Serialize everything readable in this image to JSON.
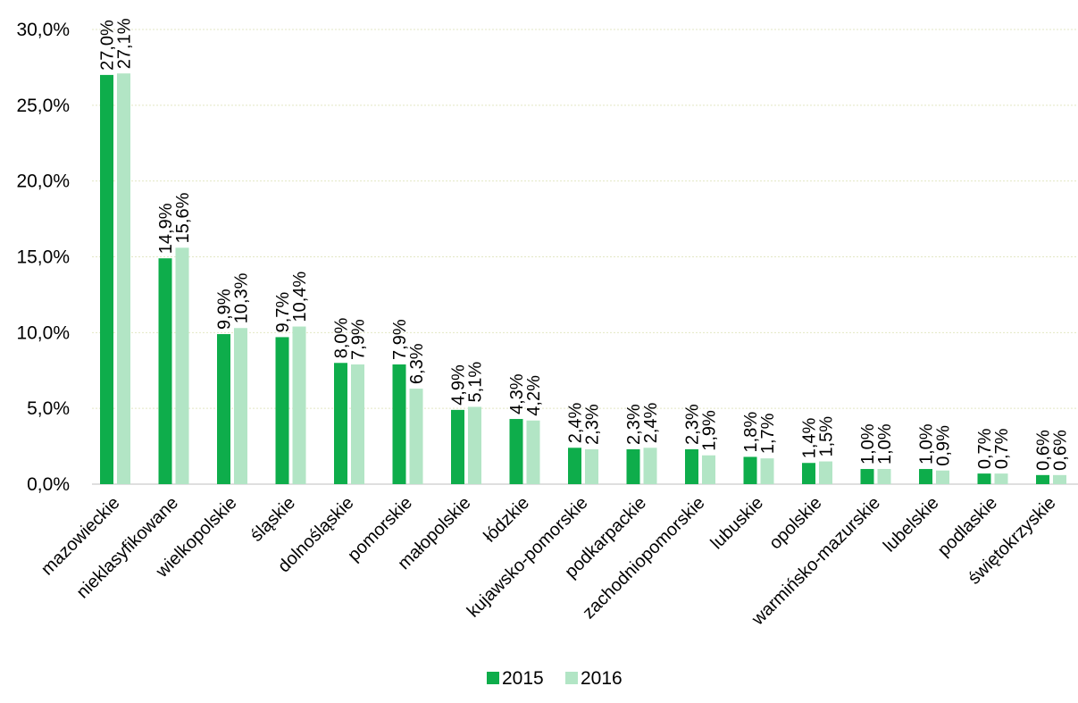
{
  "chart_data": {
    "type": "bar",
    "categories": [
      "mazowieckie",
      "nieklasyfikowane",
      "wielkopolskie",
      "śląskie",
      "dolnośląskie",
      "pomorskie",
      "małopolskie",
      "łódzkie",
      "kujawsko-pomorskie",
      "podkarpackie",
      "zachodniopomorskie",
      "lubuskie",
      "opolskie",
      "warmińsko-mazurskie",
      "lubelskie",
      "podlaskie",
      "świętokrzyskie"
    ],
    "series": [
      {
        "name": "2015",
        "color": "#0ead4b",
        "values": [
          27.0,
          14.9,
          9.9,
          9.7,
          8.0,
          7.9,
          4.9,
          4.3,
          2.4,
          2.3,
          2.3,
          1.8,
          1.4,
          1.0,
          1.0,
          0.7,
          0.6
        ],
        "labels": [
          "27,0%",
          "14,9%",
          "9,9%",
          "9,7%",
          "8,0%",
          "7,9%",
          "4,9%",
          "4,3%",
          "2,4%",
          "2,3%",
          "2,3%",
          "1,8%",
          "1,4%",
          "1,0%",
          "1,0%",
          "0,7%",
          "0,6%"
        ]
      },
      {
        "name": "2016",
        "color": "#b2e5c5",
        "values": [
          27.1,
          15.6,
          10.3,
          10.4,
          7.9,
          6.3,
          5.1,
          4.2,
          2.3,
          2.4,
          1.9,
          1.7,
          1.5,
          1.0,
          0.9,
          0.7,
          0.6
        ],
        "labels": [
          "27,1%",
          "15,6%",
          "10,3%",
          "10,4%",
          "7,9%",
          "6,3%",
          "5,1%",
          "4,2%",
          "2,3%",
          "2,4%",
          "1,9%",
          "1,7%",
          "1,5%",
          "1,0%",
          "0,9%",
          "0,7%",
          "0,6%"
        ]
      }
    ],
    "yticks": [
      0,
      5,
      10,
      15,
      20,
      25,
      30
    ],
    "ytick_labels": [
      "0,0%",
      "5,0%",
      "10,0%",
      "15,0%",
      "20,0%",
      "25,0%",
      "30,0%"
    ],
    "ylim": [
      0,
      30
    ],
    "grid": true,
    "legend": "bottom-center"
  }
}
